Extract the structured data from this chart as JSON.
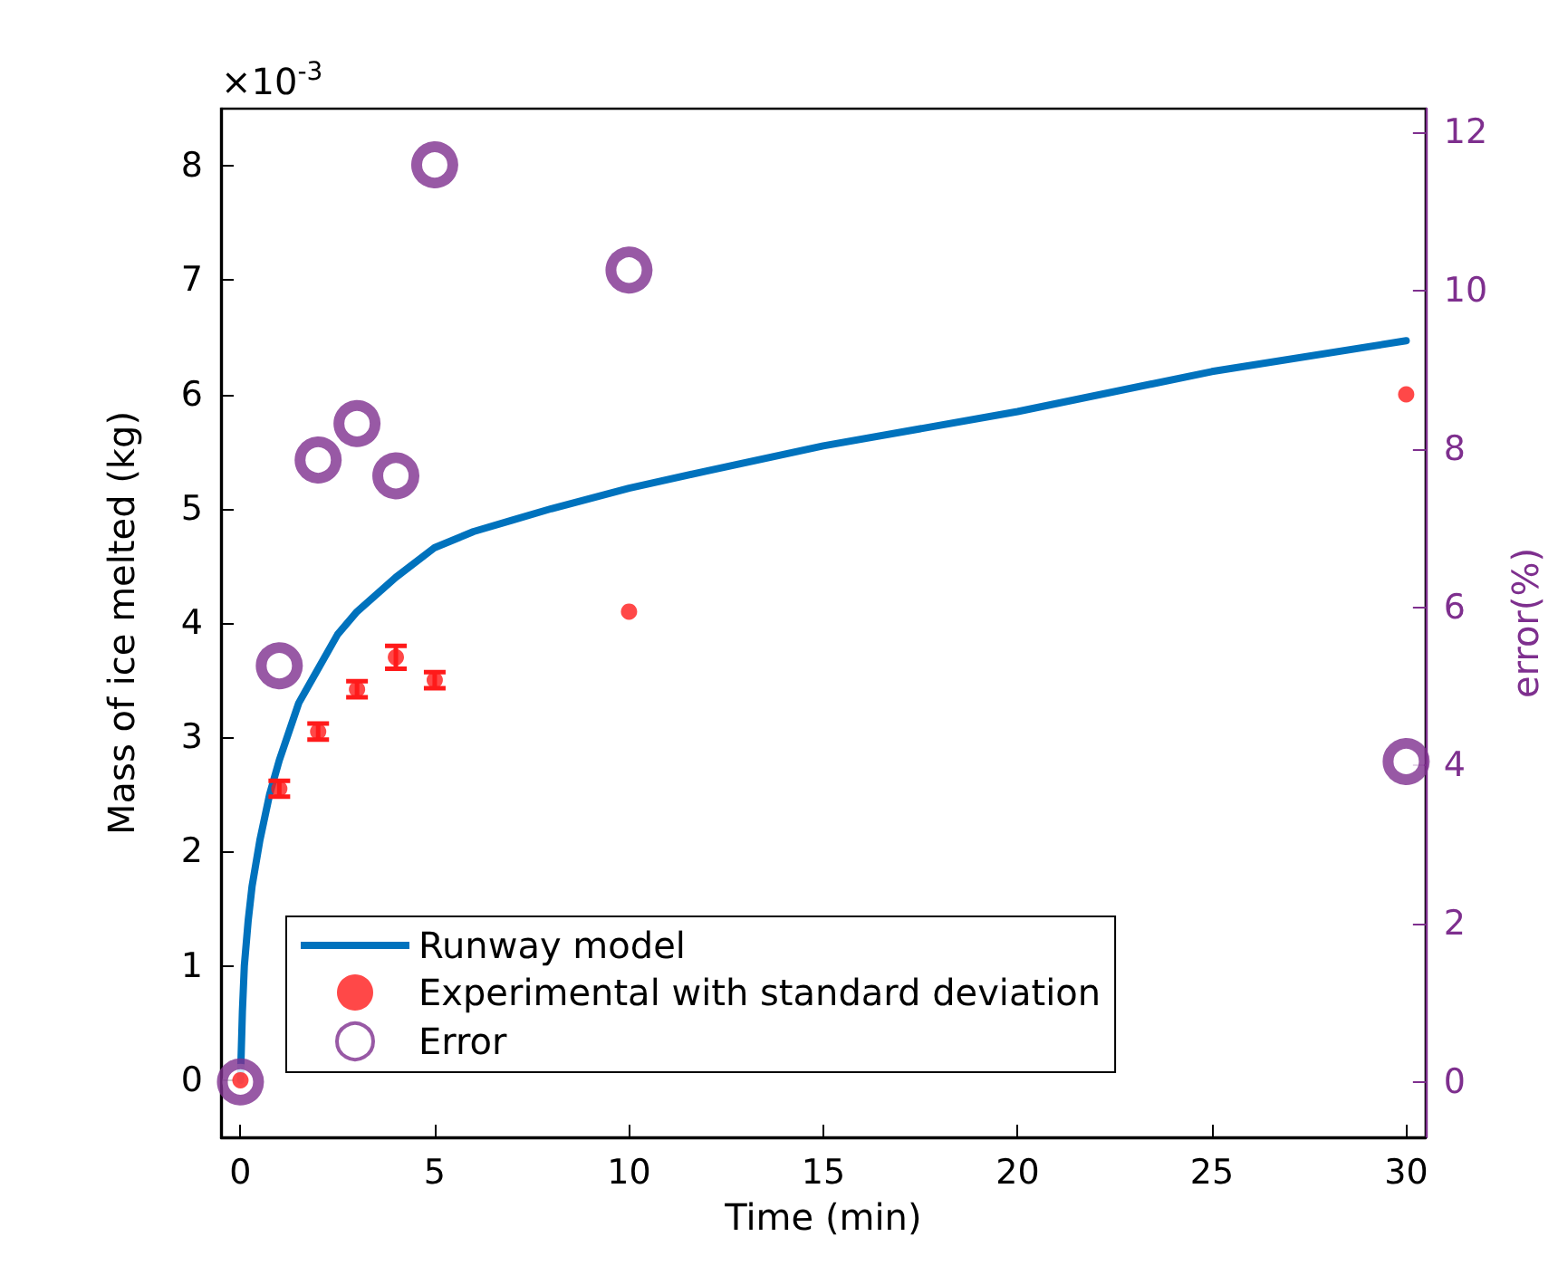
{
  "chart_data": {
    "type": "scatter",
    "xlabel": "Time (min)",
    "ylabel": "Mass of ice melted (kg)",
    "y2label": "error(%)",
    "annotations": [
      "×10$^{-3}$"
    ],
    "xlim": [
      -0.5,
      30.5
    ],
    "xticks": [
      0,
      5,
      10,
      15,
      20,
      25,
      30
    ],
    "ylim": [
      -0.5,
      8.5
    ],
    "yticks": [
      0,
      1,
      2,
      3,
      4,
      5,
      6,
      7,
      8
    ],
    "y2lim": [
      -0.7,
      12.3
    ],
    "y2ticks": [
      0,
      2,
      4,
      6,
      8,
      10,
      12
    ],
    "grid": false,
    "legend": "bottom left",
    "series": [
      {
        "name": "Runway model",
        "type": "line",
        "color": "#0072bd",
        "marker": "none",
        "line_style": "solid",
        "x": [
          0,
          0.05,
          0.1,
          0.2,
          0.3,
          0.5,
          0.75,
          1,
          1.5,
          2,
          2.5,
          3,
          4,
          5,
          6,
          7,
          8,
          10,
          12,
          15,
          20,
          25,
          30
        ],
        "values": [
          0,
          0.6,
          1.0,
          1.4,
          1.7,
          2.1,
          2.5,
          2.8,
          3.3,
          3.6,
          3.9,
          4.1,
          4.4,
          4.66,
          4.8,
          4.9,
          5.0,
          5.18,
          5.33,
          5.55,
          5.85,
          6.2,
          6.47
        ]
      },
      {
        "name": "Experimental with standard deviation",
        "color": "#ff1a1a",
        "marker": "circle",
        "x": [
          0,
          1,
          2,
          3,
          4,
          5,
          10,
          30
        ],
        "values": [
          0,
          2.55,
          3.05,
          3.42,
          3.7,
          3.5,
          4.1,
          6.0
        ],
        "errors": [
          null,
          0.07,
          0.07,
          0.07,
          0.1,
          0.07,
          null,
          null
        ]
      },
      {
        "name": "Error",
        "axis": "y2",
        "color": "#7e2f8e",
        "marker": "circle",
        "x": [
          0,
          1,
          2,
          3,
          4,
          5,
          10,
          30
        ],
        "values": [
          0,
          5.26,
          7.86,
          8.32,
          7.66,
          11.59,
          10.26,
          4.05
        ]
      }
    ]
  }
}
